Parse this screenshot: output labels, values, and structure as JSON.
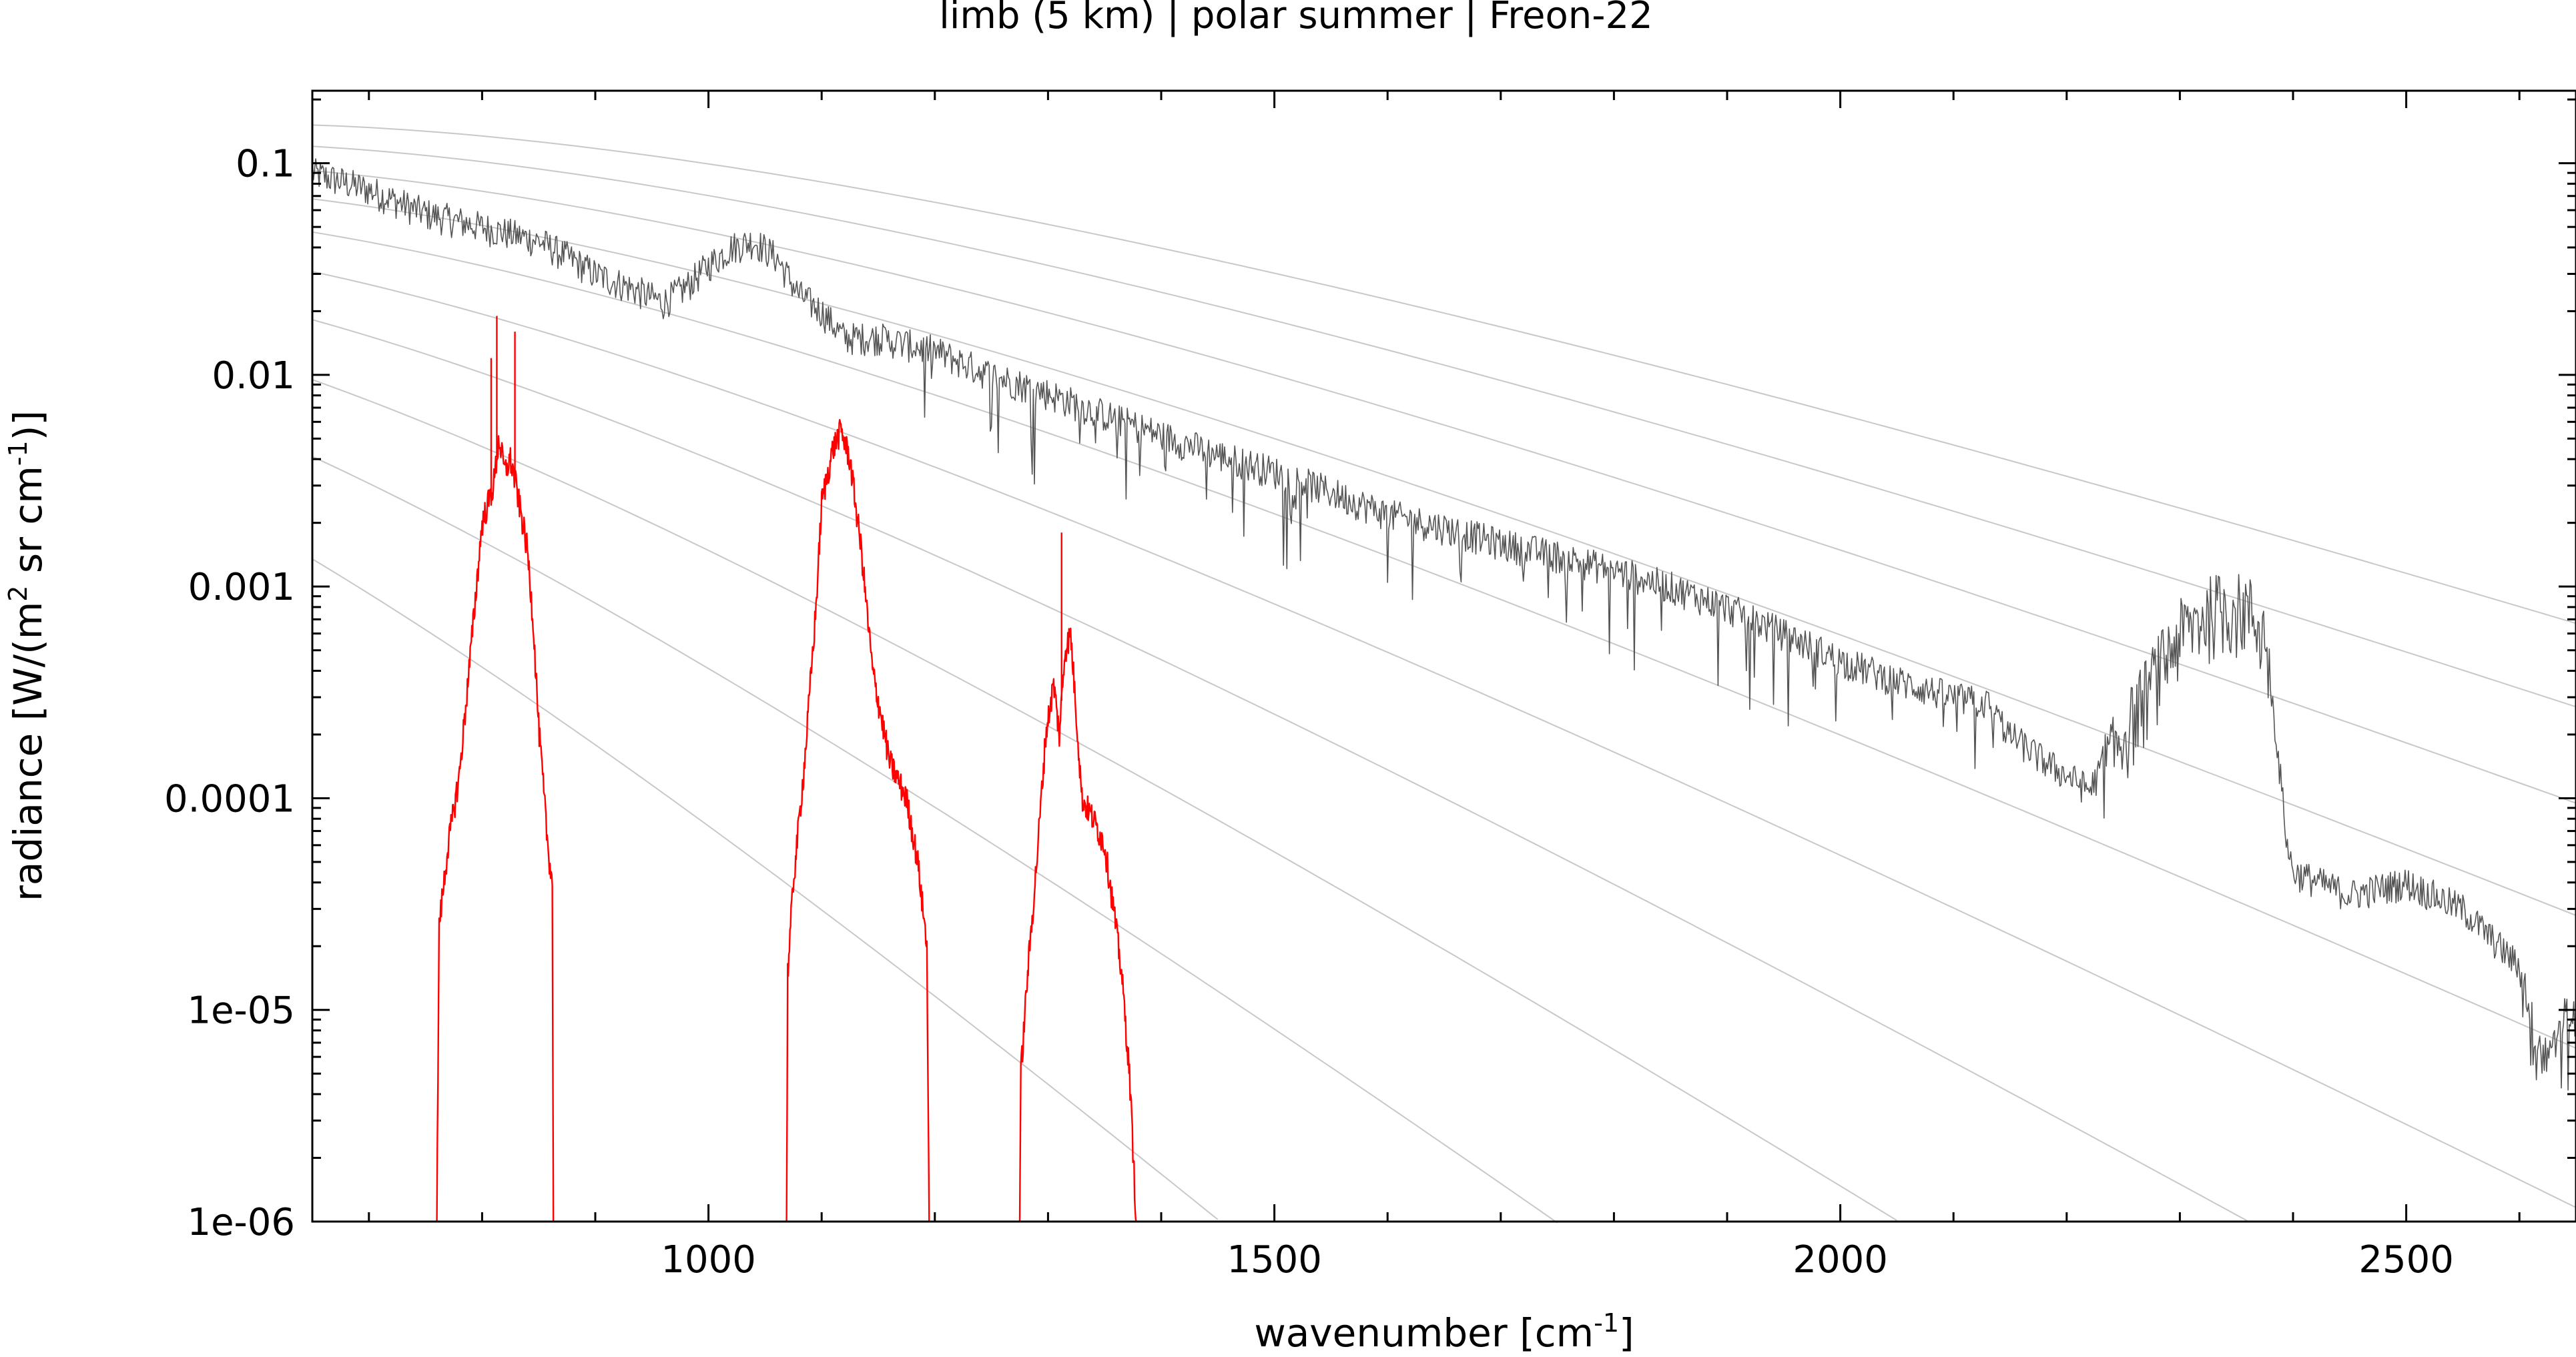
{
  "chart_data": {
    "type": "line",
    "title": "limb (5 km) | polar summer | Freon-22",
    "xlabel": {
      "text": "wavenumber [cm",
      "sup": "-1",
      "suffix": "]"
    },
    "ylabel": {
      "text": "radiance [W/(m",
      "sup1": "2",
      "mid": " sr cm",
      "sup2": "-1",
      "suffix": ")]"
    },
    "xlim": [
      650,
      2650
    ],
    "ylim": [
      1e-06,
      0.22
    ],
    "yscale": "log",
    "x_ticks": [
      {
        "value": 1000,
        "label": "1000"
      },
      {
        "value": 1500,
        "label": "1500"
      },
      {
        "value": 2000,
        "label": "2000"
      },
      {
        "value": 2500,
        "label": "2500"
      }
    ],
    "y_ticks": [
      {
        "value": 0.1,
        "label": "0.1"
      },
      {
        "value": 0.01,
        "label": "0.01"
      },
      {
        "value": 0.001,
        "label": "0.001"
      },
      {
        "value": 0.0001,
        "label": "0.0001"
      },
      {
        "value": 1e-05,
        "label": "1e-05"
      },
      {
        "value": 1e-06,
        "label": "1e-06"
      }
    ],
    "grid": false,
    "colors": {
      "total": "#555555",
      "freon": "#ff0000",
      "reference": "#c8c8c8"
    },
    "reference_curves": {
      "description_units": "Planck radiance curves, temperature in K",
      "temperatures": [
        300,
        280,
        260,
        240,
        220,
        200,
        180,
        160,
        140,
        120
      ]
    },
    "series": [
      {
        "color": "#555555",
        "noise": 0.18,
        "points": [
          [
            650,
            0.09
          ],
          [
            700,
            0.075
          ],
          [
            750,
            0.058
          ],
          [
            800,
            0.05
          ],
          [
            850,
            0.043
          ],
          [
            880,
            0.035
          ],
          [
            900,
            0.03
          ],
          [
            930,
            0.026
          ],
          [
            960,
            0.022
          ],
          [
            980,
            0.026
          ],
          [
            1000,
            0.033
          ],
          [
            1020,
            0.04
          ],
          [
            1040,
            0.043
          ],
          [
            1060,
            0.036
          ],
          [
            1080,
            0.024
          ],
          [
            1100,
            0.02
          ],
          [
            1120,
            0.015
          ],
          [
            1150,
            0.015
          ],
          [
            1200,
            0.013
          ],
          [
            1250,
            0.01
          ],
          [
            1300,
            0.0082
          ],
          [
            1350,
            0.0065
          ],
          [
            1400,
            0.0052
          ],
          [
            1450,
            0.0042
          ],
          [
            1500,
            0.0035
          ],
          [
            1550,
            0.0028
          ],
          [
            1600,
            0.0022
          ],
          [
            1650,
            0.0019
          ],
          [
            1700,
            0.0016
          ],
          [
            1750,
            0.0014
          ],
          [
            1800,
            0.0012
          ],
          [
            1850,
            0.001
          ],
          [
            1900,
            0.0008
          ],
          [
            1950,
            0.0006
          ],
          [
            2000,
            0.00045
          ],
          [
            2050,
            0.00036
          ],
          [
            2100,
            0.0003
          ],
          [
            2130,
            0.00028
          ],
          [
            2150,
            0.0002
          ],
          [
            2180,
            0.00015
          ],
          [
            2220,
            0.00011
          ],
          [
            2250,
            0.0002
          ],
          [
            2280,
            0.0004
          ],
          [
            2300,
            0.0006
          ],
          [
            2330,
            0.0008
          ],
          [
            2360,
            0.0008
          ],
          [
            2375,
            0.0006
          ],
          [
            2385,
            0.0002
          ],
          [
            2395,
            6e-05
          ],
          [
            2400,
            4.5e-05
          ],
          [
            2450,
            3.5e-05
          ],
          [
            2500,
            4e-05
          ],
          [
            2550,
            3e-05
          ],
          [
            2600,
            1.6e-05
          ],
          [
            2620,
            6e-06
          ],
          [
            2650,
            1e-05
          ]
        ]
      },
      {
        "color": "#ff0000",
        "segments": [
          {
            "points": [
              [
                760,
                1e-06
              ],
              [
                762,
                2.5e-05
              ],
              [
                770,
                6e-05
              ],
              [
                780,
                0.00013
              ],
              [
                790,
                0.0005
              ],
              [
                800,
                0.002
              ],
              [
                810,
                0.003
              ],
              [
                815,
                0.005
              ],
              [
                820,
                0.0035
              ],
              [
                825,
                0.004
              ],
              [
                830,
                0.003
              ],
              [
                840,
                0.0015
              ],
              [
                845,
                0.0007
              ],
              [
                850,
                0.00022
              ],
              [
                858,
                6e-05
              ],
              [
                862,
                4e-05
              ],
              [
                863,
                1e-06
              ]
            ],
            "spikes": [
              [
                808,
                0.012
              ],
              [
                813,
                0.019
              ],
              [
                829,
                0.016
              ]
            ]
          },
          {
            "points": [
              [
                1069,
                1e-06
              ],
              [
                1070,
                1.5e-05
              ],
              [
                1075,
                4e-05
              ],
              [
                1085,
                0.00015
              ],
              [
                1095,
                0.0008
              ],
              [
                1100,
                0.0025
              ],
              [
                1110,
                0.0045
              ],
              [
                1117,
                0.0055
              ],
              [
                1125,
                0.004
              ],
              [
                1135,
                0.0015
              ],
              [
                1145,
                0.0004
              ],
              [
                1160,
                0.00015
              ],
              [
                1175,
                0.0001
              ],
              [
                1185,
                5e-05
              ],
              [
                1193,
                2e-05
              ],
              [
                1195,
                1e-06
              ]
            ],
            "spikes": []
          },
          {
            "points": [
              [
                1275,
                1e-06
              ],
              [
                1276,
                5e-06
              ],
              [
                1282,
                1.5e-05
              ],
              [
                1290,
                5e-05
              ],
              [
                1298,
                0.0002
              ],
              [
                1305,
                0.00035
              ],
              [
                1310,
                0.0002
              ],
              [
                1315,
                0.0005
              ],
              [
                1320,
                0.0006
              ],
              [
                1325,
                0.00025
              ],
              [
                1330,
                0.0001
              ],
              [
                1340,
                8e-05
              ],
              [
                1350,
                6e-05
              ],
              [
                1358,
                3e-05
              ],
              [
                1365,
                1.5e-05
              ],
              [
                1372,
                5e-06
              ],
              [
                1378,
                1e-06
              ]
            ],
            "spikes": [
              [
                1312,
                0.0018
              ]
            ]
          }
        ]
      }
    ]
  }
}
